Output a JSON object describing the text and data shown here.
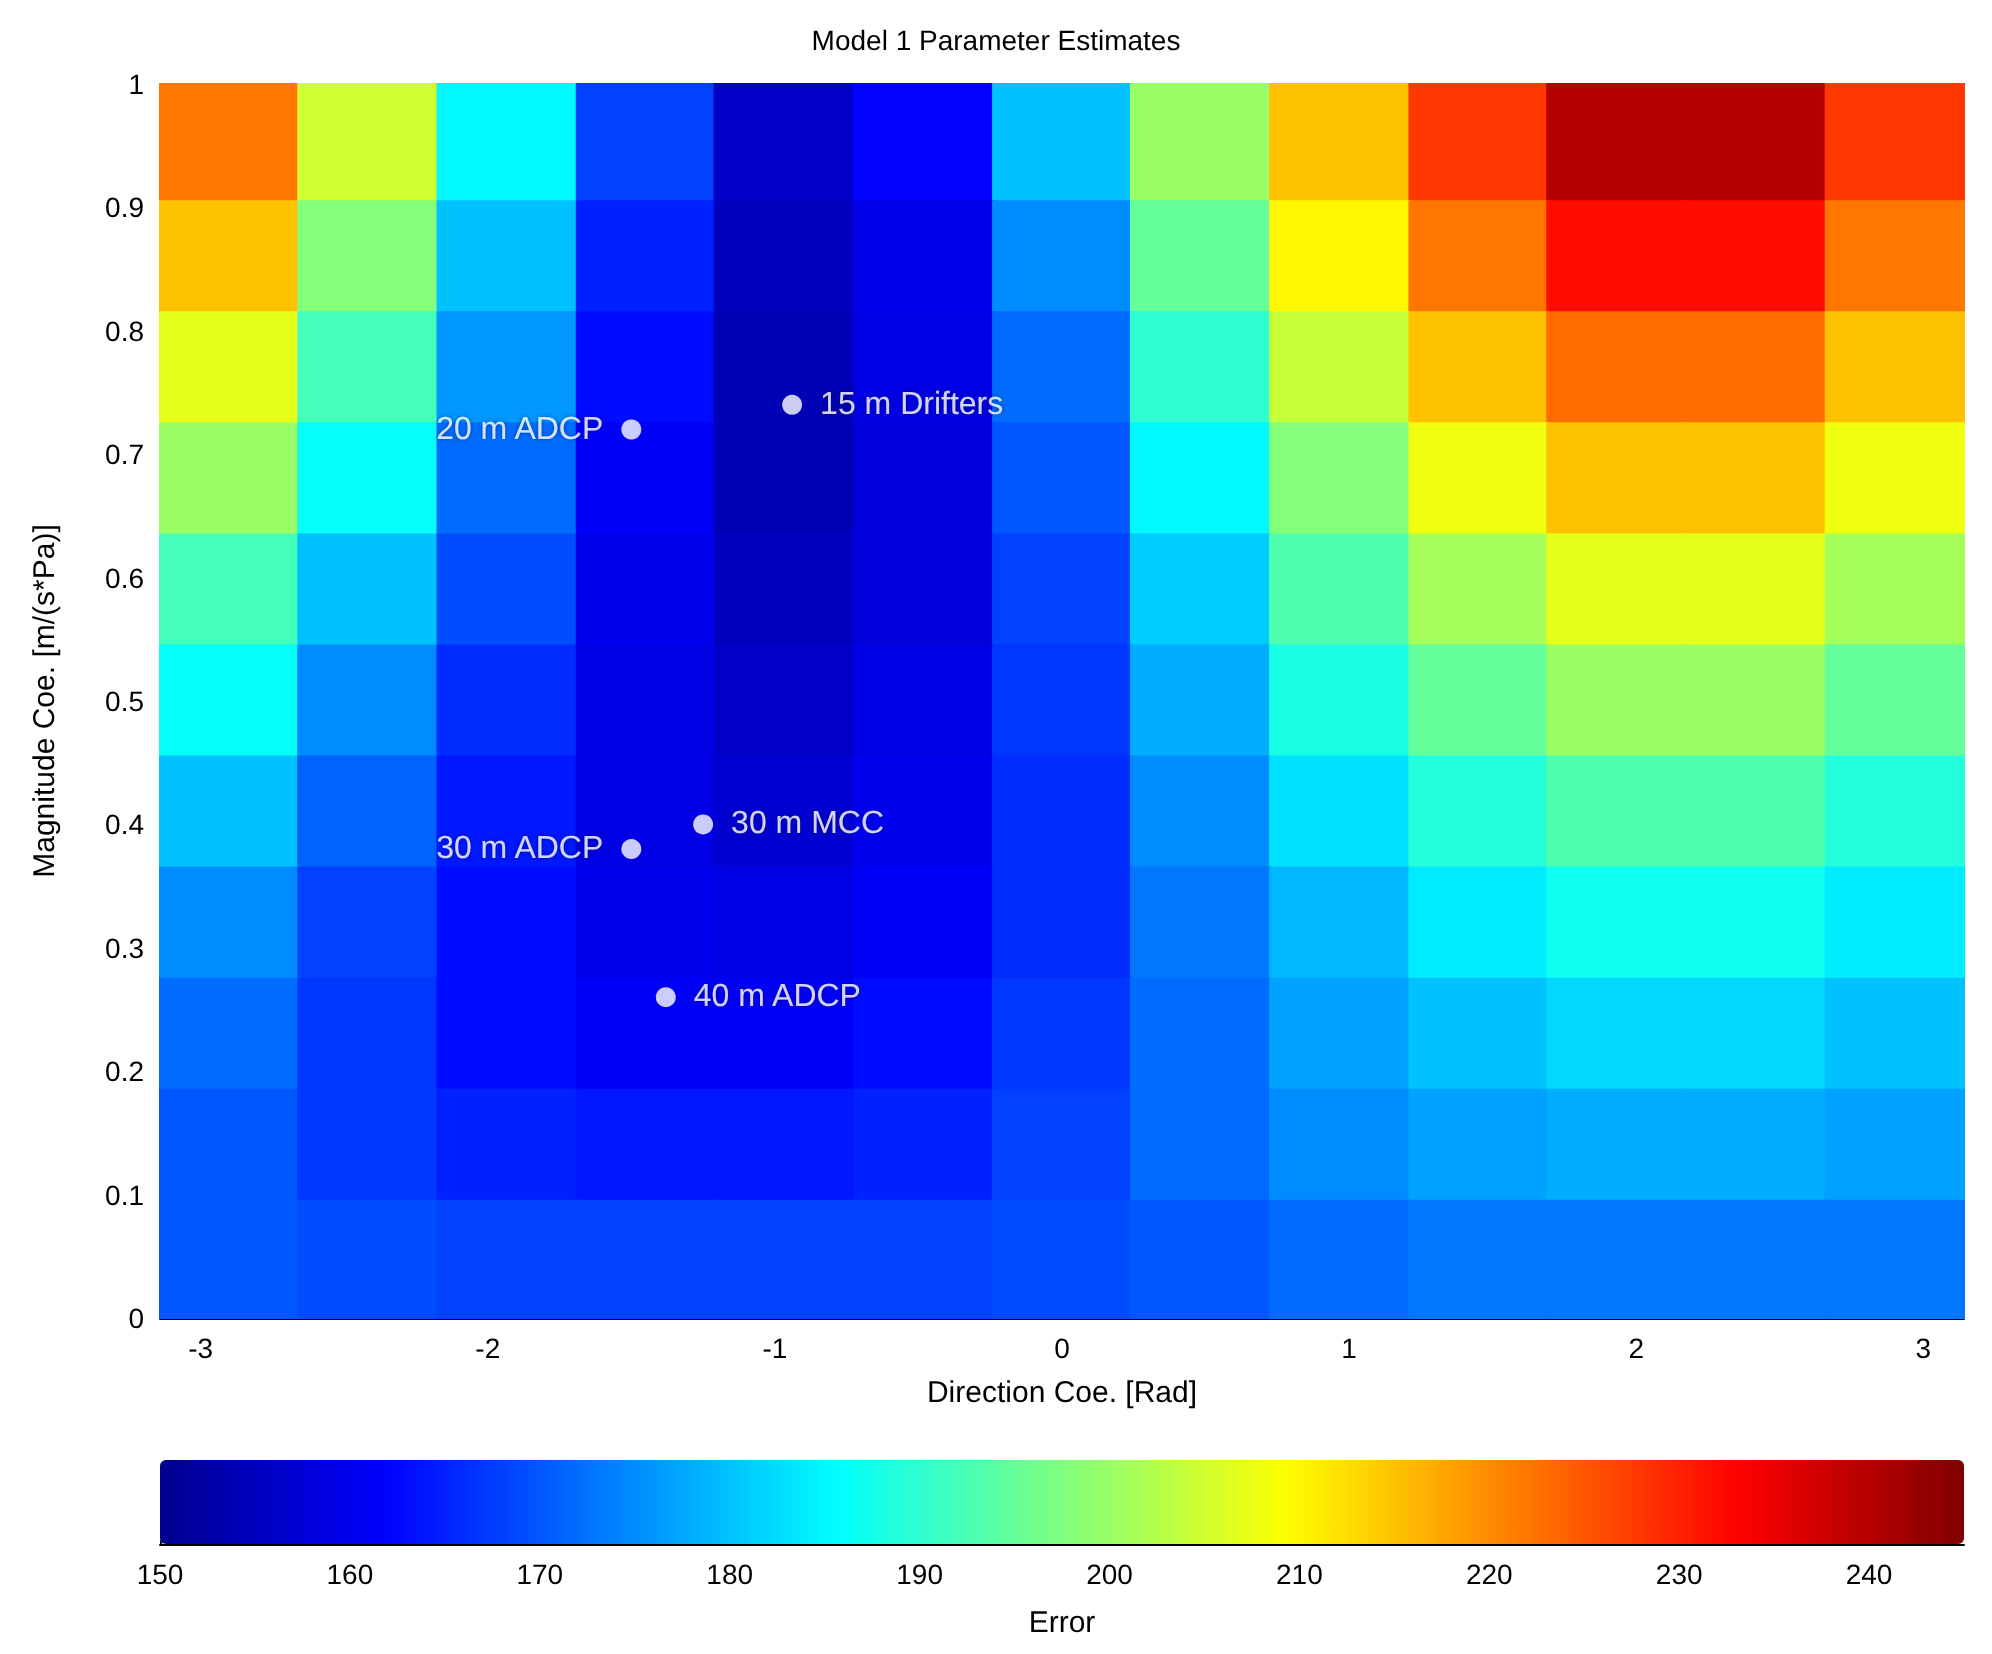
{
  "chart_data": {
    "type": "heatmap",
    "title": "Model 1 Parameter Estimates",
    "xlabel": "Direction Coe. [Rad]",
    "ylabel": "Magnitude Coe. [m/(s*Pa)]",
    "clabel": "Error",
    "x": [
      -2.9,
      -2.42,
      -1.93,
      -1.45,
      -0.97,
      -0.48,
      0,
      0.48,
      0.97,
      1.45,
      1.93,
      2.42,
      2.9
    ],
    "y": [
      0.95,
      0.86,
      0.77,
      0.68,
      0.59,
      0.5,
      0.41,
      0.32,
      0.23,
      0.14,
      0.05
    ],
    "cells": [
      [
        222,
        205,
        185,
        168,
        156,
        162,
        180,
        200,
        215,
        228,
        240,
        240,
        228
      ],
      [
        215,
        198,
        180,
        165,
        155,
        160,
        175,
        195,
        210,
        222,
        232,
        232,
        222
      ],
      [
        207,
        192,
        176,
        163,
        154,
        159,
        172,
        190,
        204,
        215,
        223,
        223,
        215
      ],
      [
        200,
        186,
        172,
        161,
        154,
        158,
        170,
        185,
        198,
        208,
        215,
        215,
        208
      ],
      [
        192,
        180,
        169,
        160,
        155,
        158,
        168,
        181,
        193,
        201,
        207,
        207,
        201
      ],
      [
        186,
        175,
        166,
        159,
        156,
        159,
        167,
        178,
        188,
        195,
        200,
        200,
        195
      ],
      [
        180,
        171,
        164,
        159,
        157,
        160,
        166,
        175,
        183,
        189,
        193,
        193,
        189
      ],
      [
        175,
        168,
        163,
        160,
        159,
        161,
        166,
        173,
        179,
        184,
        187,
        187,
        184
      ],
      [
        172,
        167,
        163,
        161,
        161,
        163,
        167,
        172,
        177,
        180,
        182,
        182,
        180
      ],
      [
        170,
        167,
        165,
        164,
        164,
        165,
        168,
        172,
        175,
        177,
        178,
        178,
        177
      ],
      [
        170,
        169,
        168,
        168,
        168,
        168,
        169,
        170,
        172,
        173,
        173,
        173,
        173
      ]
    ],
    "clim": [
      150,
      245
    ],
    "cticks": [
      150,
      160,
      170,
      180,
      190,
      200,
      210,
      220,
      230,
      240
    ],
    "xlim": [
      -3.1416,
      3.1416
    ],
    "xticks": [
      -3,
      -2,
      -1,
      0,
      1,
      2,
      3
    ],
    "ylim": [
      0,
      1
    ],
    "yticks": [
      0,
      0.1,
      0.2,
      0.3,
      0.4,
      0.5,
      0.6,
      0.7,
      0.8,
      0.9,
      1
    ],
    "series": [
      {
        "type": "scatter",
        "color": "#ffffff",
        "x": [
          -0.94,
          -1.5,
          -1.5,
          -1.25,
          -1.38
        ],
        "values": [
          0.74,
          0.72,
          0.38,
          0.4,
          0.26
        ]
      }
    ],
    "marker": "circle",
    "annotations": [
      {
        "text": "15 m Drifters",
        "x": -0.94,
        "y": 0.74
      },
      {
        "text": "20 m ADCP",
        "x": -1.5,
        "y": 0.72
      },
      {
        "text": "30 m ADCP",
        "x": -1.5,
        "y": 0.38
      },
      {
        "text": "30 m MCC",
        "x": -1.25,
        "y": 0.4
      },
      {
        "text": "40 m ADCP",
        "x": -1.38,
        "y": 0.26
      }
    ]
  }
}
